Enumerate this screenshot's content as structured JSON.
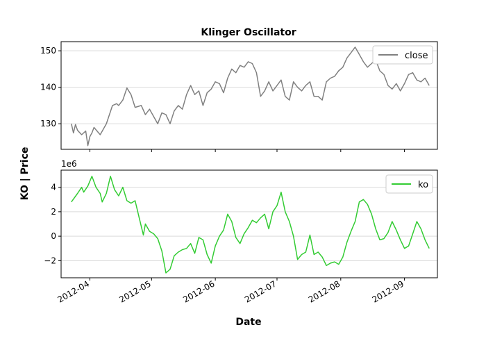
{
  "chart_data": {
    "type": "line",
    "title": "Klinger Oscillator",
    "xlabel": "Date",
    "ylabel": "KO | Price",
    "x_axis_type": "date",
    "x_range": [
      "2012-03-18",
      "2012-09-17"
    ],
    "x_ticks": [
      "2012-04-01",
      "2012-05-01",
      "2012-06-01",
      "2012-07-01",
      "2012-08-01",
      "2012-09-01"
    ],
    "x_tick_labels": [
      "2012-04",
      "2012-05",
      "2012-06",
      "2012-07",
      "2012-08",
      "2012-09"
    ],
    "grid": "horizontal",
    "panels": [
      {
        "name": "price",
        "ylim": [
          123,
          152.5
        ],
        "yticks": [
          130,
          140,
          150
        ],
        "ytick_labels": [
          "130",
          "140",
          "150"
        ],
        "legend_position": "top-right",
        "series": [
          {
            "name": "close",
            "color": "#808080",
            "x": [
              "2012-03-23",
              "2012-03-24",
              "2012-03-25",
              "2012-03-26",
              "2012-03-28",
              "2012-03-30",
              "2012-03-31",
              "2012-04-01",
              "2012-04-02",
              "2012-04-03",
              "2012-04-06",
              "2012-04-09",
              "2012-04-12",
              "2012-04-14",
              "2012-04-15",
              "2012-04-17",
              "2012-04-19",
              "2012-04-21",
              "2012-04-23",
              "2012-04-26",
              "2012-04-28",
              "2012-04-30",
              "2012-05-02",
              "2012-05-04",
              "2012-05-06",
              "2012-05-08",
              "2012-05-10",
              "2012-05-12",
              "2012-05-14",
              "2012-05-16",
              "2012-05-18",
              "2012-05-20",
              "2012-05-22",
              "2012-05-24",
              "2012-05-26",
              "2012-05-28",
              "2012-05-30",
              "2012-06-01",
              "2012-06-03",
              "2012-06-05",
              "2012-06-07",
              "2012-06-09",
              "2012-06-11",
              "2012-06-13",
              "2012-06-15",
              "2012-06-17",
              "2012-06-19",
              "2012-06-21",
              "2012-06-23",
              "2012-06-25",
              "2012-06-27",
              "2012-06-29",
              "2012-07-01",
              "2012-07-03",
              "2012-07-05",
              "2012-07-07",
              "2012-07-09",
              "2012-07-11",
              "2012-07-13",
              "2012-07-15",
              "2012-07-17",
              "2012-07-19",
              "2012-07-21",
              "2012-07-23",
              "2012-07-25",
              "2012-07-27",
              "2012-07-29",
              "2012-07-31",
              "2012-08-02",
              "2012-08-04",
              "2012-08-06",
              "2012-08-08",
              "2012-08-10",
              "2012-08-12",
              "2012-08-14",
              "2012-08-16",
              "2012-08-18",
              "2012-08-20",
              "2012-08-22",
              "2012-08-24",
              "2012-08-26",
              "2012-08-28",
              "2012-08-30",
              "2012-09-01",
              "2012-09-03",
              "2012-09-05",
              "2012-09-07",
              "2012-09-09",
              "2012-09-11",
              "2012-09-13"
            ],
            "values": [
              130.0,
              127.5,
              129.8,
              128.2,
              127.0,
              128.0,
              124.0,
              126.5,
              127.5,
              129.0,
              127.0,
              130.0,
              135.0,
              135.5,
              135.0,
              136.5,
              139.8,
              138.0,
              134.5,
              135.0,
              132.5,
              134.0,
              132.0,
              130.0,
              133.0,
              132.5,
              130.0,
              133.5,
              135.0,
              134.0,
              138.0,
              140.5,
              138.0,
              139.0,
              135.0,
              138.5,
              139.5,
              141.5,
              141.0,
              138.5,
              142.5,
              145.0,
              144.0,
              146.0,
              145.5,
              147.0,
              146.5,
              144.0,
              137.5,
              139.0,
              141.5,
              139.0,
              140.5,
              142.0,
              137.5,
              136.5,
              141.5,
              140.0,
              139.0,
              140.5,
              141.5,
              137.5,
              137.5,
              136.5,
              141.5,
              142.5,
              143.0,
              144.5,
              145.5,
              148.0,
              149.5,
              151.0,
              149.0,
              147.0,
              145.5,
              146.5,
              147.5,
              144.5,
              143.5,
              140.5,
              139.5,
              141.0,
              139.0,
              141.0,
              143.5,
              144.0,
              142.0,
              141.5,
              142.5,
              140.5
            ],
            "style": "line"
          }
        ]
      },
      {
        "name": "ko",
        "ylim": [
          -3.4,
          5.4
        ],
        "yticks": [
          -2,
          0,
          2,
          4
        ],
        "ytick_labels": [
          "−2",
          "0",
          "2",
          "4"
        ],
        "offset_label": "1e6",
        "legend_position": "top-right",
        "series": [
          {
            "name": "ko",
            "color": "#33cc33",
            "x": [
              "2012-03-23",
              "2012-03-26",
              "2012-03-28",
              "2012-03-29",
              "2012-03-31",
              "2012-04-02",
              "2012-04-04",
              "2012-04-06",
              "2012-04-07",
              "2012-04-09",
              "2012-04-11",
              "2012-04-13",
              "2012-04-15",
              "2012-04-17",
              "2012-04-19",
              "2012-04-21",
              "2012-04-23",
              "2012-04-25",
              "2012-04-27",
              "2012-04-28",
              "2012-04-30",
              "2012-05-02",
              "2012-05-04",
              "2012-05-06",
              "2012-05-08",
              "2012-05-10",
              "2012-05-12",
              "2012-05-14",
              "2012-05-16",
              "2012-05-18",
              "2012-05-20",
              "2012-05-22",
              "2012-05-24",
              "2012-05-26",
              "2012-05-28",
              "2012-05-30",
              "2012-06-01",
              "2012-06-03",
              "2012-06-05",
              "2012-06-07",
              "2012-06-09",
              "2012-06-11",
              "2012-06-13",
              "2012-06-15",
              "2012-06-17",
              "2012-06-19",
              "2012-06-21",
              "2012-06-23",
              "2012-06-25",
              "2012-06-27",
              "2012-06-29",
              "2012-07-01",
              "2012-07-03",
              "2012-07-05",
              "2012-07-07",
              "2012-07-09",
              "2012-07-11",
              "2012-07-13",
              "2012-07-15",
              "2012-07-17",
              "2012-07-19",
              "2012-07-21",
              "2012-07-23",
              "2012-07-25",
              "2012-07-27",
              "2012-07-29",
              "2012-07-31",
              "2012-08-02",
              "2012-08-04",
              "2012-08-06",
              "2012-08-08",
              "2012-08-10",
              "2012-08-12",
              "2012-08-14",
              "2012-08-16",
              "2012-08-18",
              "2012-08-20",
              "2012-08-22",
              "2012-08-24",
              "2012-08-26",
              "2012-08-28",
              "2012-08-30",
              "2012-09-01",
              "2012-09-03",
              "2012-09-05",
              "2012-09-07",
              "2012-09-09",
              "2012-09-11",
              "2012-09-13"
            ],
            "values": [
              2.8,
              3.5,
              4.0,
              3.6,
              4.1,
              4.9,
              4.0,
              3.5,
              2.8,
              3.5,
              4.9,
              3.8,
              3.3,
              4.0,
              2.9,
              2.7,
              2.9,
              1.5,
              0.1,
              1.0,
              0.4,
              0.2,
              -0.2,
              -1.2,
              -3.0,
              -2.7,
              -1.6,
              -1.3,
              -1.1,
              -1.0,
              -0.6,
              -1.4,
              -0.1,
              -0.3,
              -1.5,
              -2.2,
              -0.8,
              0.0,
              0.5,
              1.8,
              1.2,
              -0.1,
              -0.6,
              0.2,
              0.7,
              1.3,
              1.1,
              1.5,
              1.8,
              0.6,
              2.0,
              2.5,
              3.6,
              2.0,
              1.2,
              0.0,
              -1.9,
              -1.5,
              -1.3,
              0.1,
              -1.5,
              -1.3,
              -1.7,
              -2.4,
              -2.2,
              -2.1,
              -2.3,
              -1.7,
              -0.5,
              0.4,
              1.2,
              2.8,
              3.0,
              2.6,
              1.8,
              0.6,
              -0.3,
              -0.2,
              0.3,
              1.2,
              0.5,
              -0.3,
              -1.0,
              -0.8,
              0.2,
              1.2,
              0.6,
              -0.3,
              -1.0
            ],
            "style": "line"
          }
        ]
      }
    ]
  }
}
